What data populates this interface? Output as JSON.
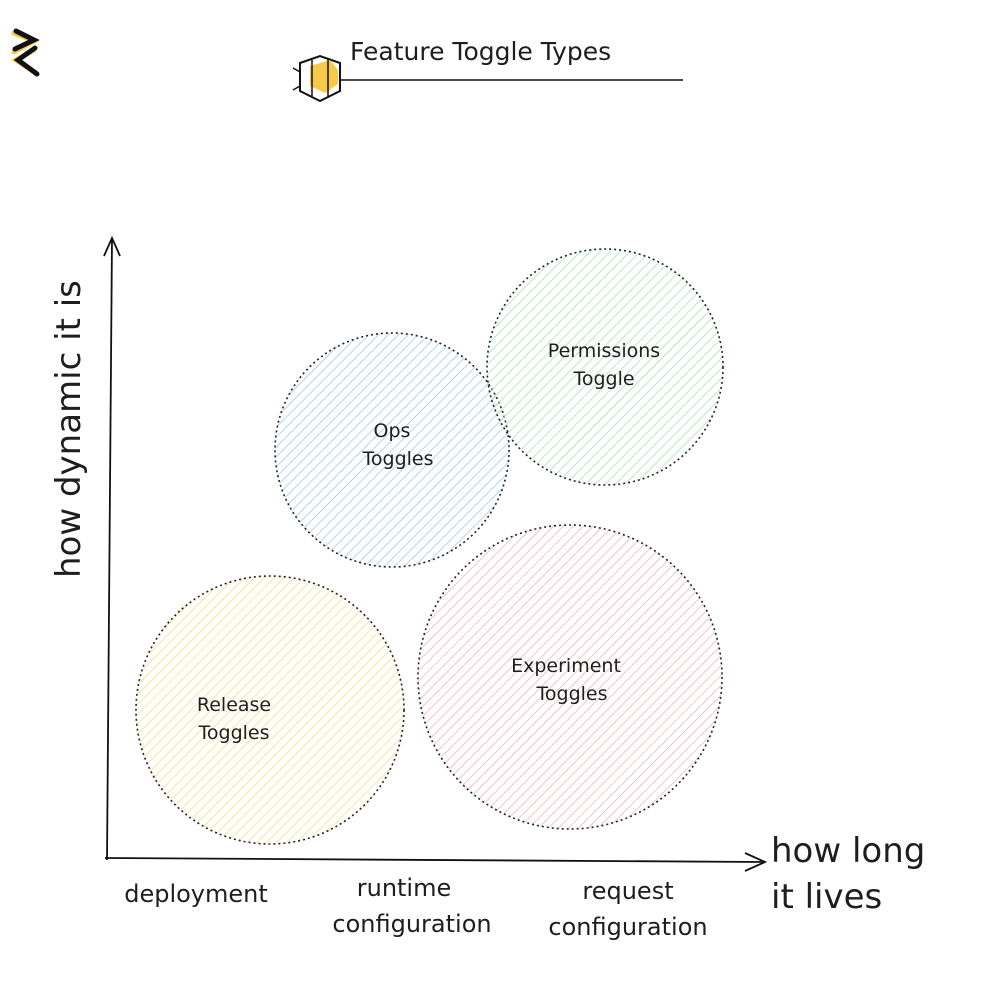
{
  "title": "Feature Toggle Types",
  "icons": {
    "logo": "zigzag-logo-icon",
    "title_icon": "hexagon-bee-icon"
  },
  "axes": {
    "y_label": "how dynamic it is",
    "x_label_line1": "how long",
    "x_label_line2": "it lives",
    "x_ticks": [
      {
        "line1": "deployment",
        "line2": ""
      },
      {
        "line1": "runtime",
        "line2": "configuration"
      },
      {
        "line1": "request",
        "line2": "configuration"
      }
    ]
  },
  "circles": [
    {
      "line1": "Release",
      "line2": "Toggles",
      "color": "#f2e27a"
    },
    {
      "line1": "Ops",
      "line2": "Toggles",
      "color": "#9fcbef"
    },
    {
      "line1": "Permissions",
      "line2": "Toggle",
      "color": "#a9e2b6"
    },
    {
      "line1": "Experiment",
      "line2": "Toggles",
      "color": "#f4b3c0"
    }
  ],
  "accent": "#f7c948"
}
